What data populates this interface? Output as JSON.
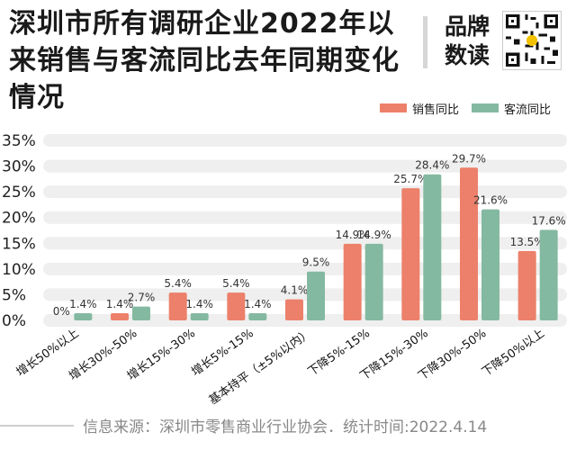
{
  "title": "深圳市所有调研企业2022年以来销售与客流同比去年同期变化情况",
  "brand": {
    "line1": "品牌",
    "line2": "数读"
  },
  "legend": {
    "sales": "销售同比",
    "traffic": "客流同比"
  },
  "source": "信息来源：深圳市零售商业行业协会．统计时间:2022.4.14",
  "colors": {
    "sales": "#ec806a",
    "traffic": "#84b9a1",
    "band": "#efefef"
  },
  "chart_data": {
    "type": "bar",
    "categories": [
      "增长50%以上",
      "增长30%-50%",
      "增长15%-30%",
      "增长5%-15%",
      "基本持平（±5%以内）",
      "下降5%-15%",
      "下降15%-30%",
      "下降30%-50%",
      "下降50%以上"
    ],
    "series": [
      {
        "name": "销售同比",
        "values": [
          0,
          1.4,
          5.4,
          5.4,
          4.1,
          14.9,
          25.7,
          29.7,
          13.5
        ],
        "labels": [
          "0%",
          "1.4%",
          "5.4%",
          "5.4%",
          "4.1%",
          "14.9%",
          "25.7%",
          "29.7%",
          "13.5%"
        ]
      },
      {
        "name": "客流同比",
        "values": [
          1.4,
          2.7,
          1.4,
          1.4,
          9.5,
          14.9,
          28.4,
          21.6,
          17.6
        ],
        "labels": [
          "1.4%",
          "2.7%",
          "1.4%",
          "1.4%",
          "9.5%",
          "14.9%",
          "28.4%",
          "21.6%",
          "17.6%"
        ]
      }
    ],
    "yticks": [
      "0%",
      "5%",
      "10%",
      "15%",
      "20%",
      "25%",
      "30%",
      "35%"
    ],
    "ylim": [
      0,
      35
    ],
    "grid": true,
    "legend_position": "top-right"
  }
}
